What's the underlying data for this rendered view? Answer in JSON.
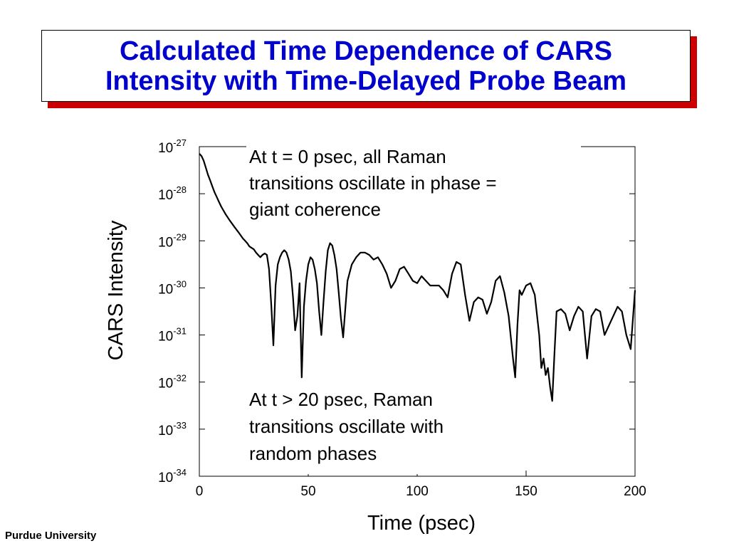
{
  "slide": {
    "title": "Calculated Time Dependence of CARS\nIntensity with Time-Delayed Probe Beam",
    "footer": "Purdue University",
    "colors": {
      "title_text": "#0000cc",
      "title_shadow": "#cc0000",
      "line": "#000000"
    }
  },
  "chart_data": {
    "type": "line",
    "title": "",
    "xlabel": "Time (psec)",
    "ylabel": "CARS Intensity",
    "xlim": [
      0,
      200
    ],
    "y_log_exponent_lim": [
      -34,
      -27
    ],
    "y_scale": "log",
    "grid": false,
    "x_ticks": [
      0,
      50,
      100,
      150,
      200
    ],
    "y_tick_labels": [
      {
        "base": "10",
        "exp": "-27"
      },
      {
        "base": "10",
        "exp": "-28"
      },
      {
        "base": "10",
        "exp": "-29"
      },
      {
        "base": "10",
        "exp": "-30"
      },
      {
        "base": "10",
        "exp": "-31"
      },
      {
        "base": "10",
        "exp": "-32"
      },
      {
        "base": "10",
        "exp": "-33"
      },
      {
        "base": "10",
        "exp": "-34"
      }
    ],
    "annotations": [
      {
        "lines": [
          "At t = 0 psec, all Raman",
          "transitions oscillate in phase =",
          "giant coherence"
        ]
      },
      {
        "lines": [
          "At t > 20 psec, Raman",
          "transitions oscillate with",
          "random phases"
        ]
      }
    ],
    "series": [
      {
        "x": [
          0,
          1,
          2,
          3,
          4,
          5,
          6,
          7,
          8,
          9,
          10,
          12,
          14,
          16,
          18,
          20,
          21,
          22,
          23,
          24,
          25,
          26,
          27,
          28,
          29,
          30,
          31,
          32,
          33,
          34,
          35,
          36,
          37,
          38,
          39,
          40,
          41,
          42,
          43,
          44,
          45,
          46,
          47,
          48,
          49,
          50,
          51,
          52,
          53,
          54,
          55,
          56,
          57,
          58,
          59,
          60,
          61,
          62,
          63,
          64,
          65,
          66,
          67,
          68,
          70,
          72,
          74,
          76,
          78,
          80,
          82,
          84,
          86,
          88,
          90,
          92,
          94,
          96,
          98,
          100,
          102,
          104,
          106,
          108,
          110,
          112,
          114,
          116,
          118,
          120,
          122,
          124,
          126,
          128,
          130,
          132,
          134,
          136,
          138,
          140,
          142,
          144,
          145,
          146,
          147,
          148,
          150,
          152,
          154,
          156,
          157,
          158,
          159,
          160,
          161,
          162,
          163,
          164,
          166,
          168,
          170,
          172,
          174,
          176,
          178,
          180,
          182,
          184,
          186,
          188,
          190,
          192,
          194,
          196,
          198,
          200
        ],
        "log10_y": [
          -27.15,
          -27.2,
          -27.3,
          -27.45,
          -27.6,
          -27.72,
          -27.85,
          -27.97,
          -28.07,
          -28.17,
          -28.27,
          -28.43,
          -28.57,
          -28.7,
          -28.82,
          -28.95,
          -29.0,
          -29.05,
          -29.12,
          -29.15,
          -29.18,
          -29.25,
          -29.3,
          -29.35,
          -29.3,
          -29.27,
          -29.3,
          -29.6,
          -30.35,
          -31.22,
          -29.95,
          -29.5,
          -29.35,
          -29.25,
          -29.2,
          -29.25,
          -29.4,
          -29.65,
          -30.2,
          -30.9,
          -30.6,
          -29.9,
          -31.9,
          -30.4,
          -29.85,
          -29.5,
          -29.35,
          -29.4,
          -29.6,
          -29.9,
          -30.5,
          -31.0,
          -30.3,
          -29.65,
          -29.2,
          -29.05,
          -29.1,
          -29.3,
          -29.6,
          -30.1,
          -30.65,
          -31.05,
          -30.45,
          -29.85,
          -29.5,
          -29.35,
          -29.25,
          -29.25,
          -29.3,
          -29.4,
          -29.35,
          -29.5,
          -29.7,
          -30.0,
          -29.85,
          -29.6,
          -29.55,
          -29.7,
          -29.85,
          -29.9,
          -29.75,
          -29.85,
          -29.95,
          -29.95,
          -29.95,
          -30.05,
          -30.2,
          -29.7,
          -29.45,
          -29.5,
          -30.15,
          -30.7,
          -30.3,
          -30.2,
          -30.25,
          -30.55,
          -30.3,
          -29.85,
          -29.75,
          -30.1,
          -30.6,
          -31.5,
          -31.9,
          -30.8,
          -30.05,
          -30.15,
          -29.95,
          -29.9,
          -30.15,
          -31.0,
          -31.7,
          -31.5,
          -31.85,
          -31.7,
          -32.1,
          -32.4,
          -31.4,
          -30.5,
          -30.45,
          -30.55,
          -30.9,
          -30.6,
          -30.4,
          -30.5,
          -31.5,
          -30.6,
          -30.45,
          -30.5,
          -31.0,
          -30.8,
          -30.6,
          -30.4,
          -30.5,
          -31.0,
          -31.3,
          -30.05
        ]
      }
    ]
  }
}
